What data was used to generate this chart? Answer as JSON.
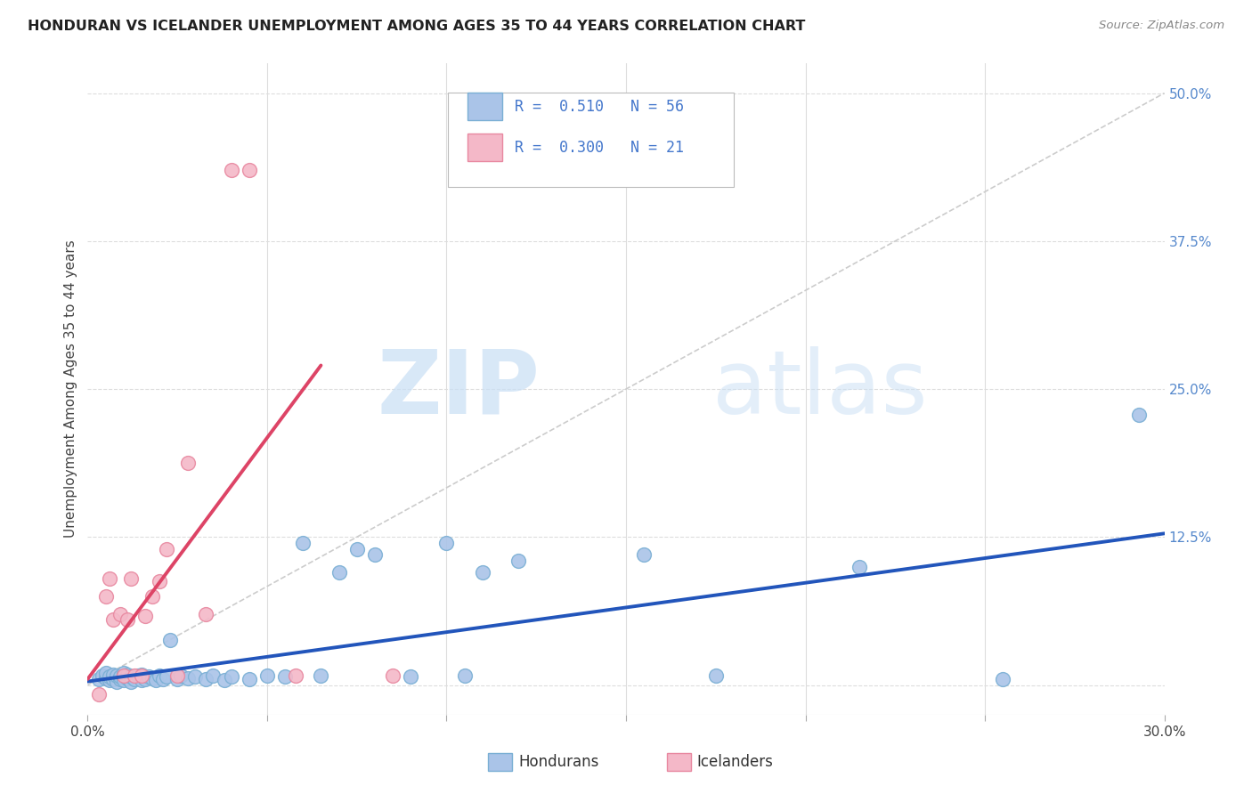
{
  "title": "HONDURAN VS ICELANDER UNEMPLOYMENT AMONG AGES 35 TO 44 YEARS CORRELATION CHART",
  "source": "Source: ZipAtlas.com",
  "ylabel": "Unemployment Among Ages 35 to 44 years",
  "xlim": [
    0.0,
    0.3
  ],
  "ylim": [
    -0.025,
    0.525
  ],
  "xticks": [
    0.0,
    0.05,
    0.1,
    0.15,
    0.2,
    0.25,
    0.3
  ],
  "xticklabels": [
    "0.0%",
    "",
    "",
    "",
    "",
    "",
    "30.0%"
  ],
  "ytick_positions": [
    0.0,
    0.125,
    0.25,
    0.375,
    0.5
  ],
  "yticklabels": [
    "",
    "12.5%",
    "25.0%",
    "37.5%",
    "50.0%"
  ],
  "R_blue": 0.51,
  "N_blue": 56,
  "R_pink": 0.3,
  "N_pink": 21,
  "blue_color": "#aac4e8",
  "blue_edge": "#7aafd4",
  "pink_color": "#f4b8c8",
  "pink_edge": "#e888a0",
  "trend_blue": "#2255bb",
  "trend_pink": "#dd4466",
  "diagonal_color": "#cccccc",
  "grid_color": "#dddddd",
  "watermark_zip": "ZIP",
  "watermark_atlas": "atlas",
  "blue_points_x": [
    0.003,
    0.004,
    0.005,
    0.005,
    0.006,
    0.006,
    0.007,
    0.007,
    0.008,
    0.008,
    0.009,
    0.009,
    0.01,
    0.01,
    0.011,
    0.011,
    0.012,
    0.012,
    0.013,
    0.014,
    0.015,
    0.015,
    0.016,
    0.017,
    0.018,
    0.019,
    0.02,
    0.021,
    0.022,
    0.023,
    0.025,
    0.026,
    0.028,
    0.03,
    0.033,
    0.035,
    0.038,
    0.04,
    0.045,
    0.05,
    0.055,
    0.06,
    0.065,
    0.07,
    0.075,
    0.08,
    0.09,
    0.1,
    0.105,
    0.11,
    0.12,
    0.155,
    0.175,
    0.215,
    0.255,
    0.293
  ],
  "blue_points_y": [
    0.005,
    0.008,
    0.006,
    0.01,
    0.004,
    0.007,
    0.005,
    0.009,
    0.003,
    0.008,
    0.005,
    0.007,
    0.004,
    0.01,
    0.006,
    0.009,
    0.003,
    0.007,
    0.005,
    0.008,
    0.004,
    0.009,
    0.005,
    0.007,
    0.006,
    0.004,
    0.008,
    0.005,
    0.007,
    0.038,
    0.005,
    0.008,
    0.006,
    0.007,
    0.005,
    0.008,
    0.004,
    0.007,
    0.005,
    0.008,
    0.007,
    0.12,
    0.008,
    0.095,
    0.115,
    0.11,
    0.007,
    0.12,
    0.008,
    0.095,
    0.105,
    0.11,
    0.008,
    0.1,
    0.005,
    0.228
  ],
  "pink_points_x": [
    0.003,
    0.005,
    0.006,
    0.007,
    0.009,
    0.01,
    0.011,
    0.012,
    0.013,
    0.015,
    0.016,
    0.018,
    0.02,
    0.022,
    0.025,
    0.028,
    0.033,
    0.04,
    0.045,
    0.058,
    0.085
  ],
  "pink_points_y": [
    -0.008,
    0.075,
    0.09,
    0.055,
    0.06,
    0.008,
    0.055,
    0.09,
    0.008,
    0.008,
    0.058,
    0.075,
    0.088,
    0.115,
    0.008,
    0.188,
    0.06,
    0.435,
    0.435,
    0.008,
    0.008
  ],
  "blue_trendline_x0": 0.0,
  "blue_trendline_y0": 0.003,
  "blue_trendline_x1": 0.3,
  "blue_trendline_y1": 0.128,
  "pink_trendline_x0": 0.0,
  "pink_trendline_y0": 0.005,
  "pink_trendline_x1": 0.065,
  "pink_trendline_y1": 0.27
}
